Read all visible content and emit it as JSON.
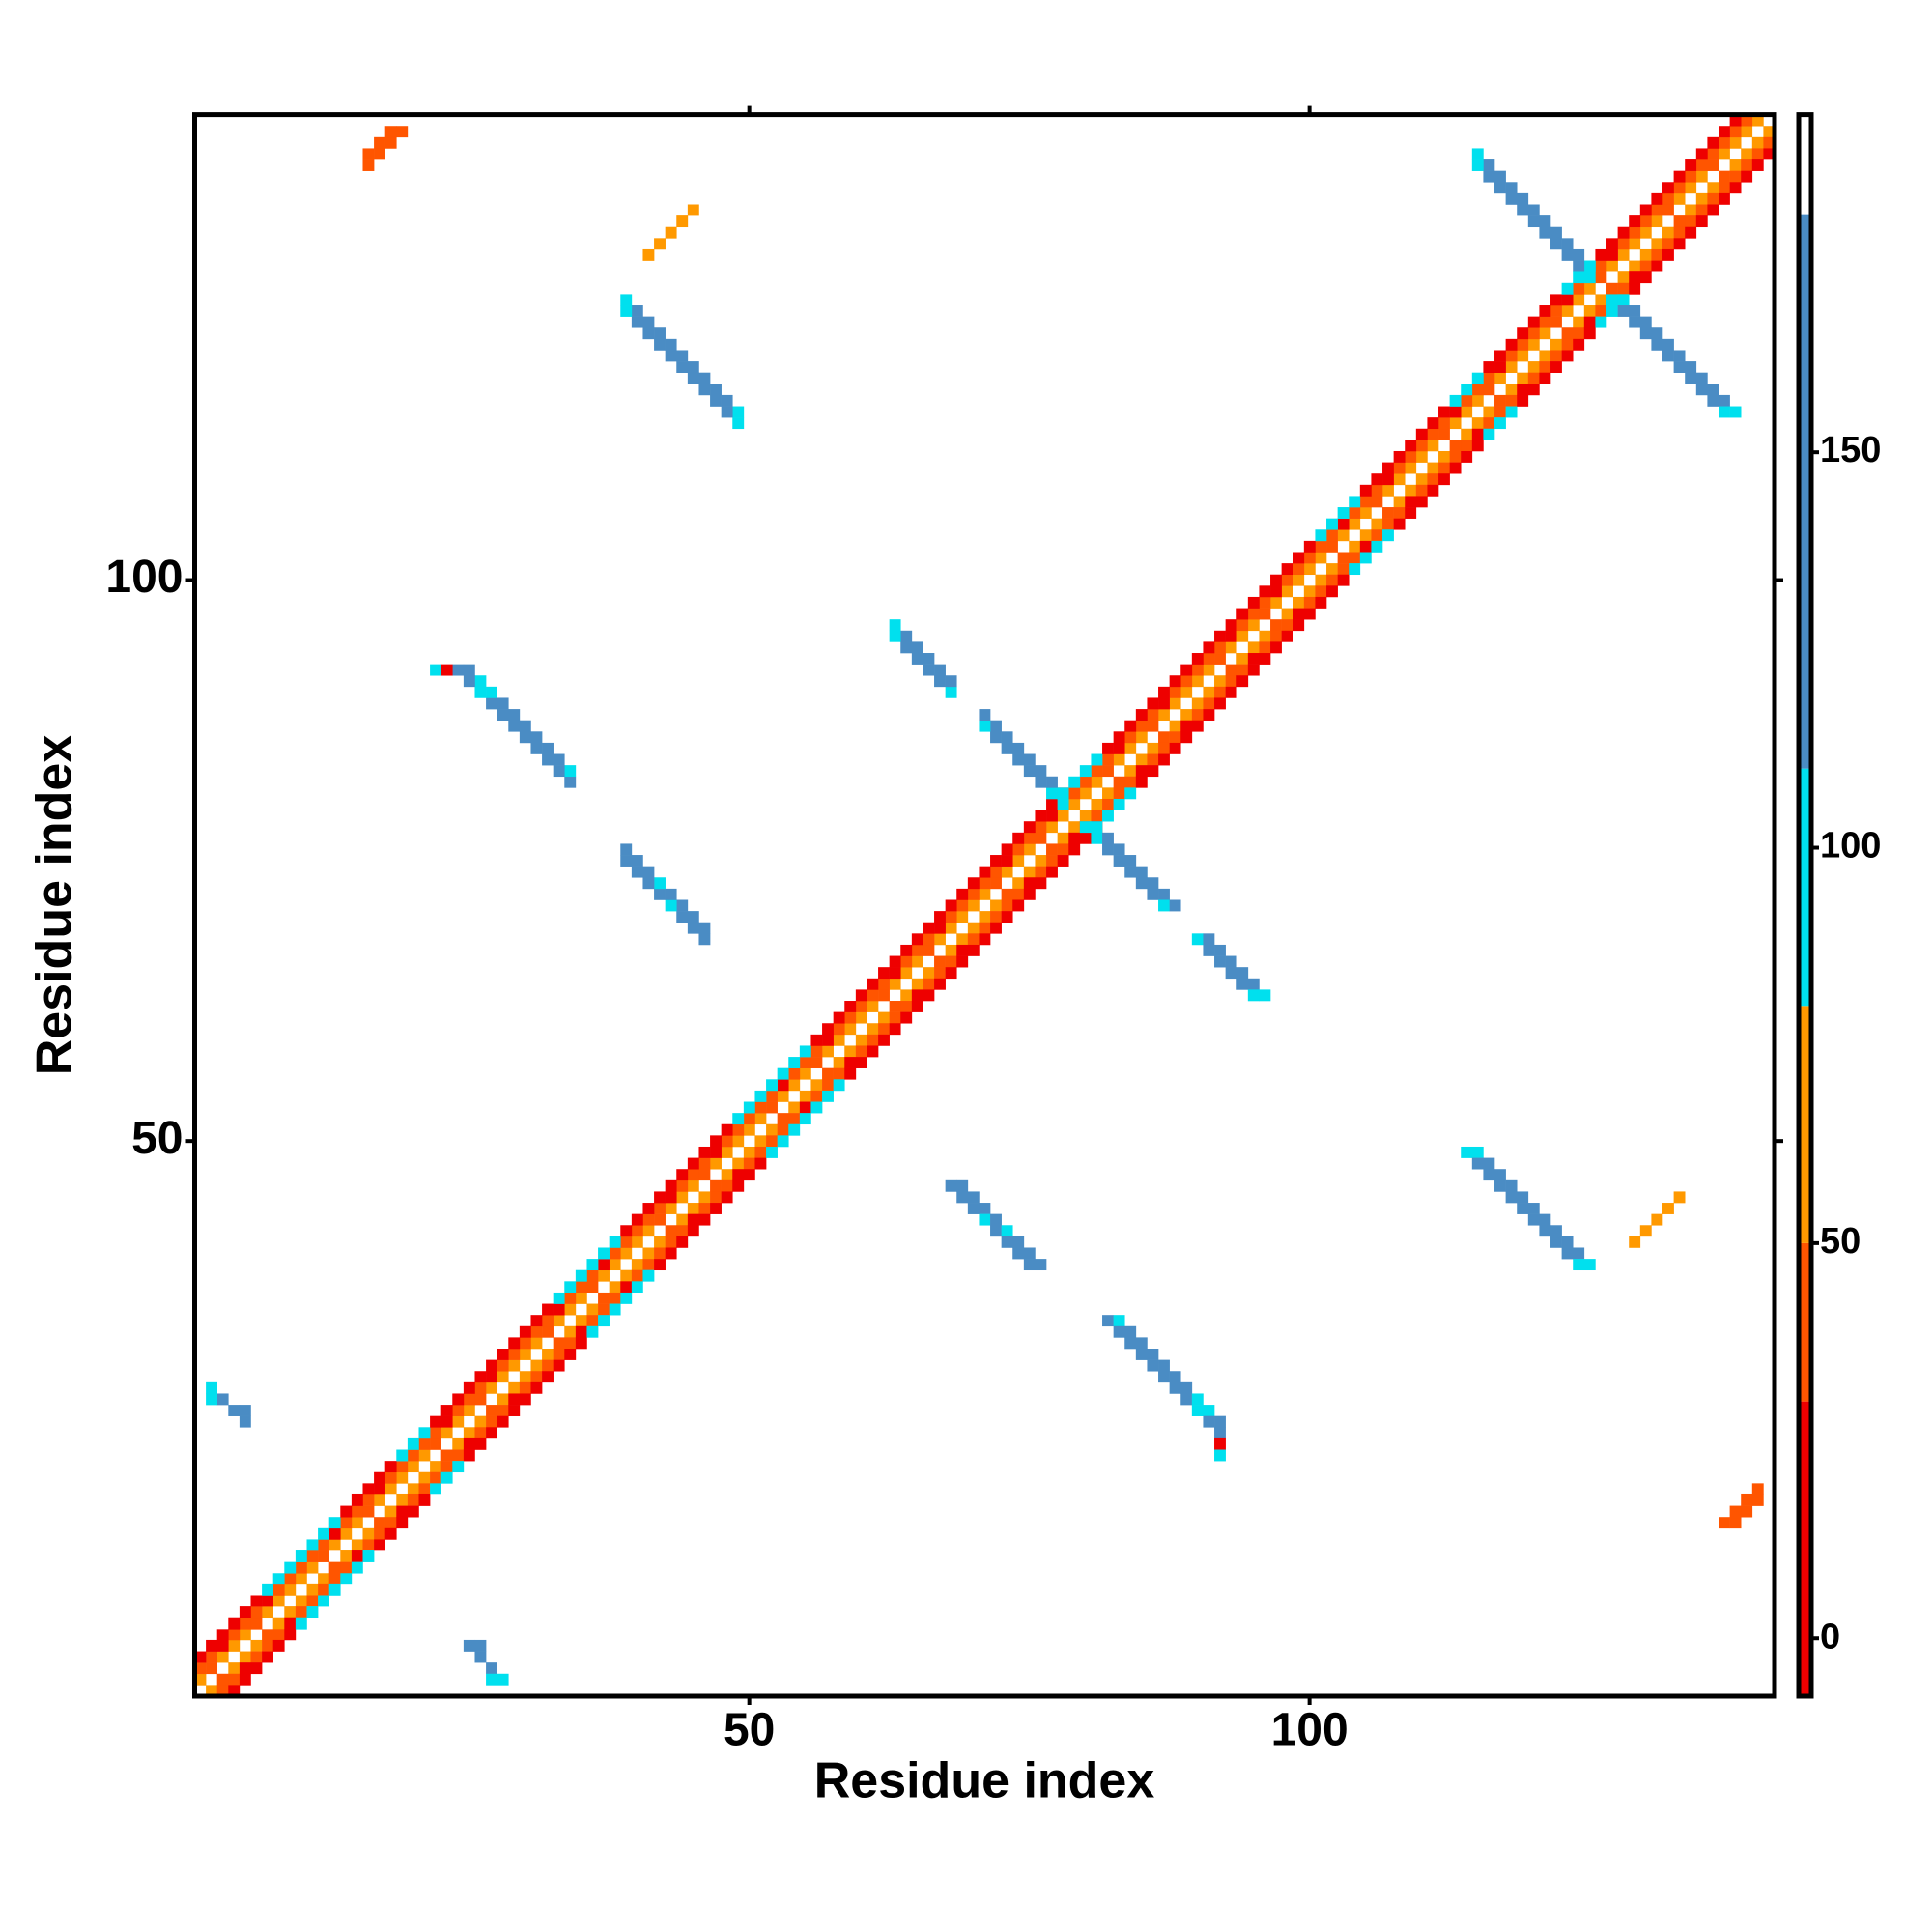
{
  "chart_data": {
    "type": "heatmap",
    "x_label": "Residue index",
    "y_label": "Residue index",
    "xlim": [
      0.5,
      141.5
    ],
    "ylim": [
      0.5,
      141.5
    ],
    "xticks": [
      50,
      100
    ],
    "yticks": [
      50,
      100
    ],
    "symmetric": true,
    "zlim": [
      -7.3,
      192.7
    ],
    "zticks": [
      0,
      50,
      100,
      150
    ],
    "color_breaks": [
      30,
      50,
      80,
      110,
      180
    ],
    "colors": [
      "#ee0000",
      "#ff5500",
      "#ff9900",
      "#00e0ee",
      "#4a8cc4",
      "#ffffff"
    ],
    "diagonals": [
      {
        "offset": 1,
        "values": [
          60,
          45,
          60,
          60,
          60,
          45,
          60,
          60,
          60,
          60,
          60,
          45,
          60,
          60,
          60,
          45,
          60,
          60,
          60,
          60,
          60,
          45,
          60,
          60,
          60,
          45,
          60,
          60,
          60,
          60,
          60,
          45,
          60,
          60,
          60,
          45,
          60,
          60,
          60,
          60,
          60,
          45,
          60,
          60,
          60,
          45,
          60,
          60,
          60,
          60,
          60,
          45,
          60,
          60,
          60,
          45,
          60,
          60,
          60,
          60,
          60,
          45,
          60,
          60,
          60,
          45,
          60,
          60,
          60,
          60,
          60,
          45,
          60,
          60,
          60,
          45,
          60,
          60,
          60,
          60,
          60,
          45,
          60,
          60,
          60,
          45,
          60,
          60,
          60,
          60,
          60,
          45,
          60,
          60,
          60,
          45,
          60,
          60,
          60,
          60,
          60,
          45,
          60,
          60,
          60,
          45,
          60,
          60,
          60,
          60,
          60,
          45,
          60,
          60,
          60,
          45,
          60,
          60,
          60,
          60,
          60,
          45,
          60,
          60,
          60,
          45,
          60,
          60,
          60,
          60,
          60,
          45,
          60,
          60,
          60,
          45,
          60,
          60,
          60,
          60
        ]
      },
      {
        "offset": 2,
        "values": [
          40,
          40,
          10,
          40,
          40,
          40,
          10,
          40,
          40,
          40,
          40,
          40,
          10,
          40,
          40,
          40,
          10,
          40,
          40,
          40,
          40,
          40,
          10,
          40,
          40,
          40,
          10,
          40,
          40,
          40,
          40,
          40,
          10,
          40,
          40,
          40,
          10,
          40,
          40,
          40,
          40,
          40,
          10,
          40,
          40,
          40,
          10,
          40,
          40,
          40,
          40,
          40,
          10,
          40,
          40,
          40,
          10,
          40,
          40,
          40,
          40,
          40,
          10,
          40,
          40,
          40,
          10,
          40,
          40,
          40,
          40,
          40,
          10,
          40,
          40,
          40,
          10,
          40,
          40,
          40,
          40,
          40,
          10,
          40,
          40,
          40,
          10,
          40,
          40,
          40,
          40,
          40,
          10,
          40,
          40,
          40,
          10,
          40,
          40,
          40,
          40,
          40,
          10,
          40,
          40,
          40,
          10,
          40,
          40,
          40,
          40,
          40,
          10,
          40,
          40,
          40,
          10,
          40,
          40,
          40,
          40,
          40,
          10,
          40,
          40,
          40,
          10,
          40,
          40,
          40,
          40,
          40,
          40,
          40,
          40,
          40,
          40,
          40,
          40
        ]
      },
      {
        "offset": 3,
        "values": [
          10,
          10,
          10,
          10,
          10,
          10,
          95,
          95,
          95,
          95,
          95,
          95,
          95,
          10,
          10,
          10,
          10,
          10,
          95,
          95,
          95,
          10,
          10,
          10,
          10,
          10,
          10,
          10,
          10,
          10,
          10,
          10,
          95,
          95,
          95,
          95,
          95,
          95,
          10,
          10,
          10,
          10,
          10,
          10,
          10,
          10,
          10,
          10,
          95,
          95,
          95,
          95,
          95,
          95,
          95,
          10,
          10,
          10,
          10,
          10,
          10,
          10,
          10,
          10,
          10,
          10,
          10,
          10,
          10,
          10,
          10,
          10,
          10,
          10,
          10,
          10,
          10,
          10,
          95,
          95,
          95,
          10,
          10,
          10,
          10,
          10,
          10,
          10,
          10,
          10,
          10,
          10,
          10,
          10,
          10,
          10,
          10,
          10,
          10,
          10,
          95,
          95,
          95,
          95,
          10,
          10,
          10,
          10,
          10,
          10,
          10,
          10,
          95,
          95,
          95,
          10,
          10,
          10,
          10,
          10,
          10,
          10,
          95,
          95,
          95,
          10,
          10,
          10,
          10,
          10,
          10,
          10,
          10,
          10,
          10,
          10,
          10,
          10
        ]
      }
    ],
    "cells": [
      [
        114,
        49,
        95
      ],
      [
        115,
        49,
        95
      ],
      [
        115,
        48,
        140
      ],
      [
        116,
        48,
        140
      ],
      [
        116,
        47,
        140
      ],
      [
        117,
        47,
        140
      ],
      [
        117,
        46,
        140
      ],
      [
        118,
        46,
        140
      ],
      [
        118,
        45,
        140
      ],
      [
        119,
        45,
        140
      ],
      [
        119,
        44,
        140
      ],
      [
        120,
        44,
        140
      ],
      [
        120,
        43,
        140
      ],
      [
        121,
        43,
        140
      ],
      [
        121,
        42,
        140
      ],
      [
        122,
        42,
        140
      ],
      [
        122,
        41,
        140
      ],
      [
        123,
        41,
        140
      ],
      [
        123,
        40,
        140
      ],
      [
        124,
        40,
        140
      ],
      [
        124,
        39,
        95
      ],
      [
        125,
        39,
        95
      ],
      [
        68,
        46,
        140
      ],
      [
        69,
        46,
        140
      ],
      [
        69,
        45,
        140
      ],
      [
        70,
        45,
        140
      ],
      [
        70,
        44,
        140
      ],
      [
        71,
        44,
        140
      ],
      [
        71,
        43,
        95
      ],
      [
        72,
        43,
        140
      ],
      [
        72,
        42,
        140
      ],
      [
        73,
        42,
        95
      ],
      [
        73,
        41,
        140
      ],
      [
        74,
        41,
        140
      ],
      [
        74,
        40,
        140
      ],
      [
        75,
        40,
        140
      ],
      [
        75,
        39,
        140
      ],
      [
        76,
        39,
        140
      ],
      [
        82,
        34,
        140
      ],
      [
        83,
        34,
        95
      ],
      [
        83,
        33,
        140
      ],
      [
        84,
        33,
        140
      ],
      [
        84,
        32,
        140
      ],
      [
        85,
        32,
        140
      ],
      [
        85,
        31,
        140
      ],
      [
        86,
        31,
        140
      ],
      [
        86,
        30,
        140
      ],
      [
        87,
        30,
        140
      ],
      [
        87,
        29,
        140
      ],
      [
        88,
        29,
        140
      ],
      [
        88,
        28,
        140
      ],
      [
        89,
        28,
        140
      ],
      [
        89,
        27,
        140
      ],
      [
        90,
        27,
        95
      ],
      [
        90,
        26,
        95
      ],
      [
        91,
        26,
        95
      ],
      [
        91,
        25,
        140
      ],
      [
        92,
        25,
        140
      ],
      [
        92,
        24,
        140
      ],
      [
        92,
        23,
        20
      ],
      [
        92,
        22,
        95
      ],
      [
        127,
        125,
        95
      ],
      [
        128,
        125,
        95
      ],
      [
        128,
        124,
        140
      ],
      [
        129,
        124,
        140
      ],
      [
        129,
        123,
        140
      ],
      [
        130,
        123,
        140
      ],
      [
        130,
        122,
        140
      ],
      [
        131,
        122,
        140
      ],
      [
        131,
        121,
        140
      ],
      [
        132,
        121,
        140
      ],
      [
        132,
        120,
        140
      ],
      [
        133,
        120,
        140
      ],
      [
        133,
        119,
        140
      ],
      [
        134,
        119,
        140
      ],
      [
        134,
        118,
        140
      ],
      [
        135,
        118,
        140
      ],
      [
        135,
        117,
        140
      ],
      [
        136,
        117,
        140
      ],
      [
        136,
        116,
        140
      ],
      [
        137,
        116,
        140
      ],
      [
        137,
        115,
        95
      ],
      [
        138,
        115,
        95
      ],
      [
        80,
        78,
        95
      ],
      [
        81,
        78,
        95
      ],
      [
        81,
        77,
        95
      ],
      [
        82,
        77,
        140
      ],
      [
        82,
        76,
        140
      ],
      [
        83,
        76,
        140
      ],
      [
        83,
        75,
        140
      ],
      [
        84,
        75,
        140
      ],
      [
        84,
        74,
        140
      ],
      [
        85,
        74,
        140
      ],
      [
        85,
        73,
        140
      ],
      [
        86,
        73,
        140
      ],
      [
        86,
        72,
        140
      ],
      [
        87,
        72,
        140
      ],
      [
        87,
        71,
        95
      ],
      [
        88,
        71,
        140
      ],
      [
        90,
        68,
        95
      ],
      [
        91,
        68,
        140
      ],
      [
        91,
        67,
        140
      ],
      [
        92,
        67,
        140
      ],
      [
        92,
        66,
        140
      ],
      [
        93,
        66,
        140
      ],
      [
        93,
        65,
        140
      ],
      [
        94,
        65,
        140
      ],
      [
        94,
        64,
        140
      ],
      [
        95,
        64,
        140
      ],
      [
        95,
        63,
        95
      ],
      [
        96,
        63,
        95
      ],
      [
        129,
        41,
        50
      ],
      [
        130,
        42,
        50
      ],
      [
        131,
        43,
        50
      ],
      [
        132,
        44,
        50
      ],
      [
        133,
        45,
        50
      ],
      [
        137,
        16,
        45
      ],
      [
        138,
        17,
        45
      ],
      [
        138,
        16,
        45
      ],
      [
        139,
        18,
        45
      ],
      [
        139,
        17,
        45
      ],
      [
        140,
        19,
        45
      ],
      [
        140,
        18,
        45
      ],
      [
        25,
        5,
        140
      ],
      [
        26,
        4,
        140
      ],
      [
        26,
        5,
        140
      ],
      [
        27,
        3,
        140
      ],
      [
        27,
        2,
        95
      ],
      [
        28,
        2,
        95
      ]
    ]
  }
}
